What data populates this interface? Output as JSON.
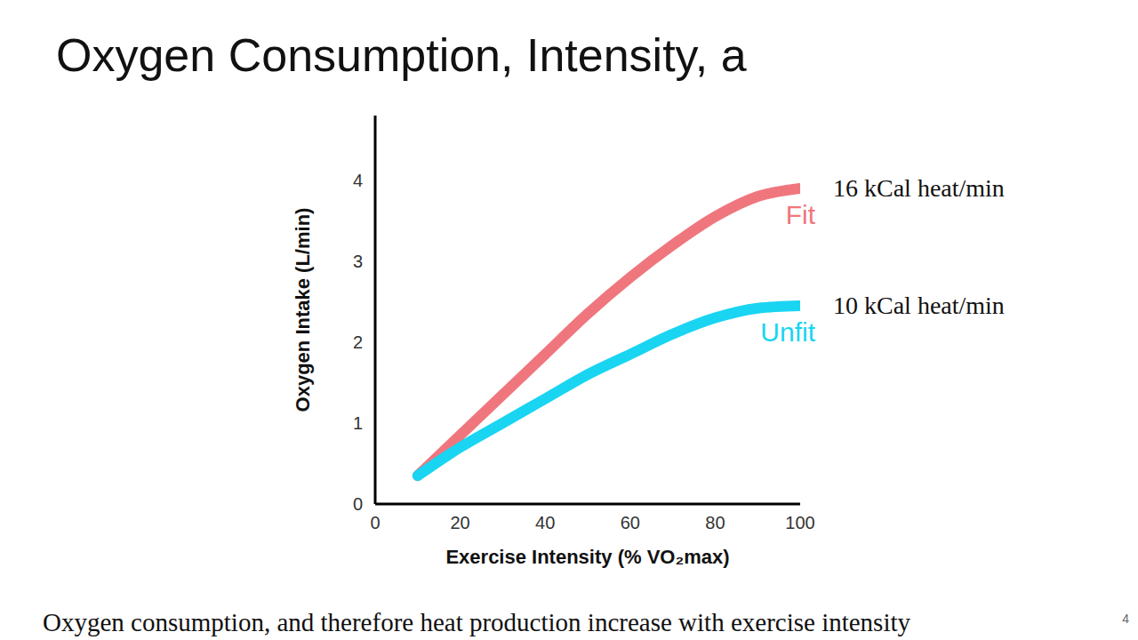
{
  "title": "Oxygen Consumption, Intensity, a",
  "footer": "Oxygen consumption, and therefore heat production increase with exercise intensity",
  "page_number": "4",
  "chart_data": {
    "type": "line",
    "x_label": "Exercise Intensity (% VO₂max)",
    "y_label": "Oxygen Intake (L/min)",
    "x": [
      10,
      20,
      30,
      40,
      50,
      60,
      70,
      80,
      90,
      100
    ],
    "series": [
      {
        "name": "Fit",
        "color": "#f0767e",
        "values": [
          0.35,
          0.85,
          1.35,
          1.85,
          2.35,
          2.8,
          3.2,
          3.55,
          3.8,
          3.9
        ],
        "annotation": "16 kCal heat/min"
      },
      {
        "name": "Unfit",
        "color": "#19d5f2",
        "values": [
          0.35,
          0.7,
          1.0,
          1.3,
          1.6,
          1.85,
          2.1,
          2.3,
          2.42,
          2.45
        ],
        "annotation": "10 kCal heat/min"
      }
    ],
    "xlim": [
      0,
      100
    ],
    "xticks": [
      0,
      20,
      40,
      60,
      80,
      100
    ],
    "ylim": [
      0,
      4.8
    ],
    "yticks": [
      0,
      1,
      2,
      3,
      4
    ],
    "grid": false
  }
}
